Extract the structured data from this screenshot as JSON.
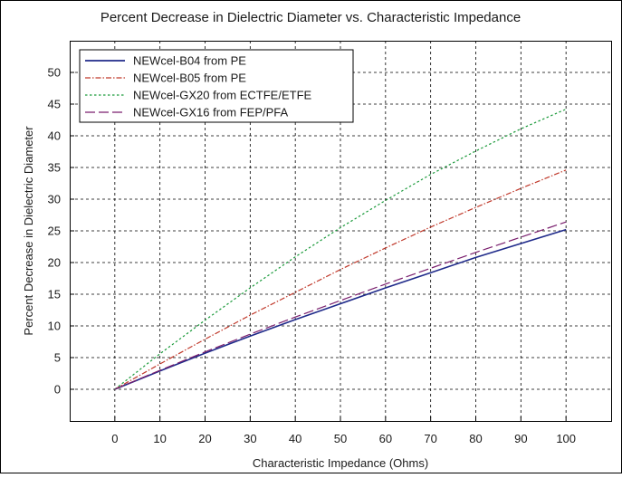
{
  "chart_data": {
    "type": "line",
    "title": "Percent Decrease in Dielectric Diameter vs. Characteristic Impedance",
    "xlabel": "Characteristic Impedance (Ohms)",
    "ylabel": "Percent Decrease in Dielectric Diameter",
    "xlim": [
      -10,
      110
    ],
    "ylim": [
      -5,
      55
    ],
    "xticks": [
      "0",
      "10",
      "20",
      "30",
      "40",
      "50",
      "60",
      "70",
      "80",
      "90",
      "100"
    ],
    "yticks": [
      "0",
      "5",
      "10",
      "15",
      "20",
      "25",
      "30",
      "35",
      "40",
      "45",
      "50"
    ],
    "grid": true,
    "legend_position": "top-left",
    "x": [
      0,
      10,
      20,
      30,
      40,
      50,
      60,
      70,
      80,
      90,
      100
    ],
    "series": [
      {
        "name": "NEWcel-B04 from PE",
        "color": "#1f2a8a",
        "dash": "solid",
        "values": [
          0,
          2.9,
          5.7,
          8.4,
          11.0,
          13.5,
          16.0,
          18.4,
          20.8,
          23.0,
          25.2
        ]
      },
      {
        "name": "NEWcel-B05 from PE",
        "color": "#c0392b",
        "dash": "dashdot",
        "values": [
          0,
          4.0,
          7.9,
          11.7,
          15.3,
          18.9,
          22.3,
          25.6,
          28.7,
          31.7,
          34.6
        ]
      },
      {
        "name": "NEWcel-GX20 from ECTFE/ETFE",
        "color": "#1a9a3a",
        "dash": "dotted",
        "values": [
          0,
          5.6,
          10.9,
          16.0,
          20.9,
          25.5,
          29.8,
          33.9,
          37.6,
          41.1,
          44.2
        ]
      },
      {
        "name": "NEWcel-GX16 from FEP/PFA",
        "color": "#7a1f6e",
        "dash": "longdash",
        "values": [
          0,
          3.0,
          5.9,
          8.7,
          11.4,
          14.0,
          16.6,
          19.1,
          21.6,
          24.0,
          26.4
        ]
      }
    ]
  }
}
